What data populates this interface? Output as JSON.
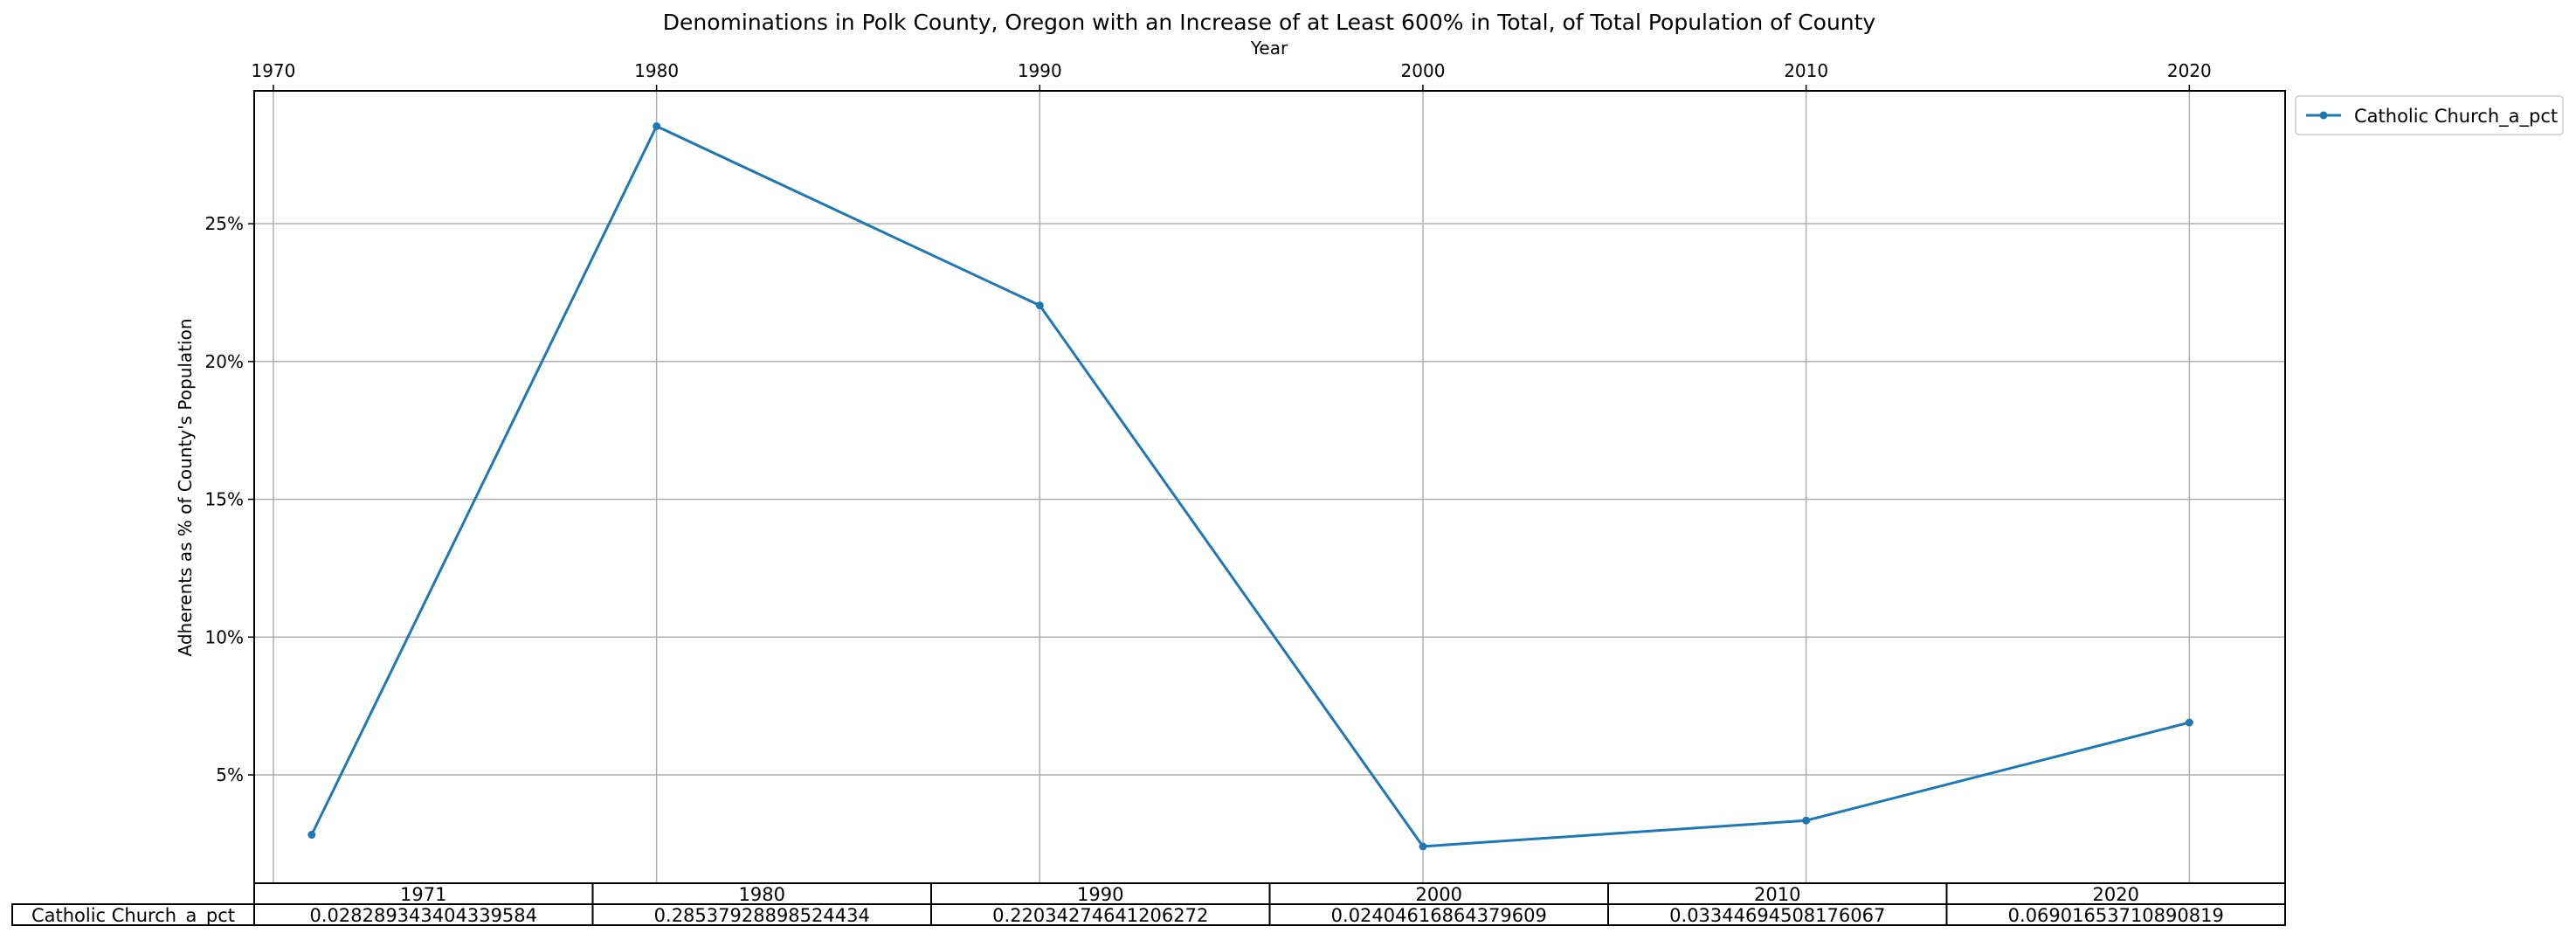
{
  "chart_data": {
    "type": "line",
    "title": "Denominations in Polk County, Oregon with an Increase of at Least 600% in Total, of Total Population of County",
    "xlabel": "Year",
    "ylabel": "Adherents as % of County's Population",
    "x_axis_position": "top",
    "x": [
      1971,
      1980,
      1990,
      2000,
      2010,
      2020
    ],
    "x_ticks": [
      1970,
      1980,
      1990,
      2000,
      2010,
      2020
    ],
    "x_tick_labels": [
      "1970",
      "1980",
      "1990",
      "2000",
      "2010",
      "2020"
    ],
    "xlim": [
      1969.5,
      2022.5
    ],
    "y_ticks": [
      0.05,
      0.1,
      0.15,
      0.2,
      0.25
    ],
    "y_tick_labels": [
      "5%",
      "10%",
      "15%",
      "20%",
      "25%"
    ],
    "ylim": [
      0.0107,
      0.2982
    ],
    "grid": true,
    "legend_position": "outside-top-right",
    "series": [
      {
        "name": "Catholic Church_a_pct",
        "color": "#1f77b4",
        "marker": "dot",
        "values": [
          0.028289343404339584,
          0.28537928898524434,
          0.22034274641206272,
          0.02404616864379609,
          0.03344694508176067,
          0.06901653710890819
        ]
      }
    ],
    "table": {
      "col_labels": [
        "1971",
        "1980",
        "1990",
        "2000",
        "2010",
        "2020"
      ],
      "row_label": "Catholic Church_a_pct",
      "cells": [
        "0.028289343404339584",
        "0.28537928898524434",
        "0.22034274641206272",
        "0.02404616864379609",
        "0.03344694508176067",
        "0.06901653710890819"
      ]
    }
  }
}
